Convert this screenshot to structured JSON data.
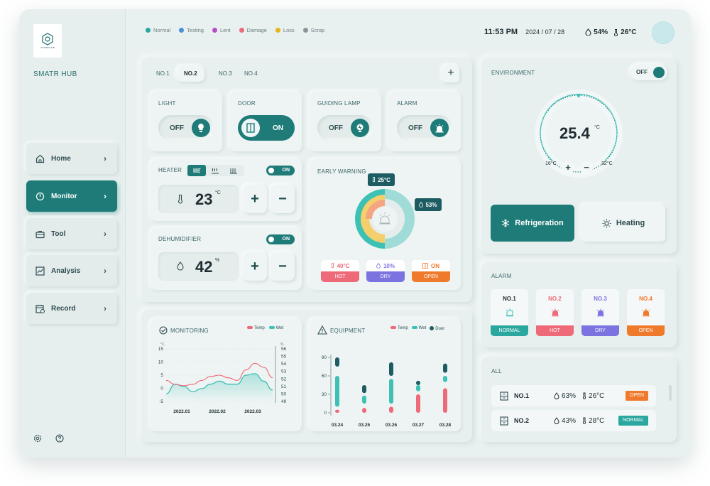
{
  "app": {
    "brand": "SMATR HUB",
    "logo_text": "SYSTEM HUB"
  },
  "nav": [
    {
      "label": "Home",
      "icon": "home-icon",
      "active": false
    },
    {
      "label": "Monitor",
      "icon": "power-icon",
      "active": true
    },
    {
      "label": "Tool",
      "icon": "toolbox-icon",
      "active": false
    },
    {
      "label": "Analysis",
      "icon": "chart-icon",
      "active": false
    },
    {
      "label": "Record",
      "icon": "calendar-icon",
      "active": false
    }
  ],
  "status_legend": [
    {
      "label": "Normal",
      "color": "#2aa79e"
    },
    {
      "label": "Testing",
      "color": "#4a8fd8"
    },
    {
      "label": "Lent",
      "color": "#b24ec7"
    },
    {
      "label": "Damage",
      "color": "#ef6a78"
    },
    {
      "label": "Loss",
      "color": "#e8b41c"
    },
    {
      "label": "Scrap",
      "color": "#8c9598"
    }
  ],
  "header": {
    "time": "11:53 PM",
    "date": "2024 / 07 / 28",
    "humidity": "54%",
    "temperature": "26°C"
  },
  "tabs": [
    "NO.1",
    "NO.2",
    "NO.3",
    "NO.4"
  ],
  "active_tab": "NO.2",
  "devices": [
    {
      "label": "LIGHT",
      "state": "OFF"
    },
    {
      "label": "DOOR",
      "state": "ON"
    },
    {
      "label": "GUIDING LAMP",
      "state": "OFF"
    },
    {
      "label": "ALARM",
      "state": "OFF"
    }
  ],
  "heater": {
    "label": "HEATER",
    "switch": "ON",
    "value": "23",
    "unit": "°C",
    "plus": "+",
    "minus": "−"
  },
  "dehumidifier": {
    "label": "DEHUMIDIFIER",
    "switch": "ON",
    "value": "42",
    "unit": "%",
    "plus": "+",
    "minus": "−"
  },
  "early_warning": {
    "label": "EARLY WARNING",
    "temp_tag": "25°C",
    "hum_tag": "53%",
    "chips": [
      {
        "value": "40°C",
        "status": "HOT",
        "color": "#ef6a78"
      },
      {
        "value": "10%",
        "status": "DRY",
        "color": "#7b73e0"
      },
      {
        "value": "ON",
        "status": "OPEN",
        "color": "#f07a2b"
      }
    ]
  },
  "monitoring": {
    "title": "MONITORING",
    "legend": [
      {
        "name": "Temp",
        "color": "#ef6a78"
      },
      {
        "name": "Wet",
        "color": "#3cc1b4"
      }
    ]
  },
  "equipment": {
    "title": "EQUIPMENT",
    "legend": [
      {
        "name": "Temp",
        "color": "#ef6a78"
      },
      {
        "name": "Wet",
        "color": "#3cc1b4"
      },
      {
        "name": "Door",
        "color": "#1e5c63"
      }
    ]
  },
  "chart_data": [
    {
      "type": "line",
      "title": "MONITORING",
      "x_labels": [
        "2022.01",
        "2022.02",
        "2022.03"
      ],
      "y_left_label": "°C",
      "y_right_label": "%",
      "y_left_ticks": [
        "15",
        "10",
        "5",
        "0",
        "-5"
      ],
      "y_right_ticks": [
        "56",
        "55",
        "54",
        "53",
        "52",
        "51",
        "50",
        "49"
      ],
      "ylim_left": [
        -5,
        15
      ],
      "ylim_right": [
        49,
        56
      ],
      "x": [
        0,
        0.5,
        1,
        1.5,
        2,
        2.5,
        3,
        3.5,
        4,
        4.5,
        5,
        5.5,
        6
      ],
      "series": [
        {
          "name": "Temp",
          "axis": "left",
          "values": [
            3,
            1.5,
            1,
            1.5,
            3,
            4.5,
            5,
            4,
            3,
            7,
            9.5,
            8,
            4
          ]
        },
        {
          "name": "Wet",
          "axis": "right",
          "values": [
            50,
            51.3,
            51,
            50.3,
            50.7,
            51.3,
            51.7,
            51.3,
            51.3,
            52.5,
            52.7,
            51.7,
            50.5
          ]
        }
      ]
    },
    {
      "type": "bar",
      "title": "EQUIPMENT",
      "categories": [
        "03.24",
        "03.25",
        "03.26",
        "03.27",
        "03.28"
      ],
      "y_ticks": [
        "90",
        "60",
        "30",
        "0"
      ],
      "ylim": [
        0,
        90
      ],
      "series": [
        {
          "name": "Temp",
          "ranges": [
            [
              0,
              5
            ],
            [
              0,
              8
            ],
            [
              0,
              10
            ],
            [
              0,
              30
            ],
            [
              0,
              40
            ]
          ]
        },
        {
          "name": "Wet",
          "ranges": [
            [
              10,
              60
            ],
            [
              15,
              28
            ],
            [
              15,
              55
            ],
            [
              35,
              45
            ],
            [
              50,
              60
            ]
          ]
        },
        {
          "name": "Door",
          "ranges": [
            [
              75,
              90
            ],
            [
              32,
              45
            ],
            [
              60,
              82
            ],
            [
              45,
              52
            ],
            [
              65,
              80
            ]
          ]
        }
      ]
    }
  ],
  "environment": {
    "label": "ENVIRONMENT",
    "switch": "OFF",
    "value": "25.4",
    "unit": "°C",
    "min": "16°C",
    "max": "32°C",
    "plus": "+",
    "minus": "−",
    "modes": [
      {
        "label": "Refrigeration",
        "active": true
      },
      {
        "label": "Heating",
        "active": false
      }
    ]
  },
  "alarm": {
    "label": "ALARM",
    "items": [
      {
        "name": "NO.1",
        "status": "NORMAL",
        "color": "#2aa79e"
      },
      {
        "name": "NO.2",
        "status": "HOT",
        "color": "#ef6a78"
      },
      {
        "name": "NO.3",
        "status": "DRY",
        "color": "#7b73e0"
      },
      {
        "name": "NO.4",
        "status": "OPEN",
        "color": "#f07a2b"
      }
    ]
  },
  "all": {
    "label": "ALL",
    "rows": [
      {
        "name": "NO.1",
        "humidity": "63%",
        "temperature": "26°C",
        "status": "OPEN",
        "color": "#f07a2b"
      },
      {
        "name": "NO.2",
        "humidity": "43%",
        "temperature": "28°C",
        "status": "NORMAL",
        "color": "#2aa79e"
      }
    ]
  }
}
